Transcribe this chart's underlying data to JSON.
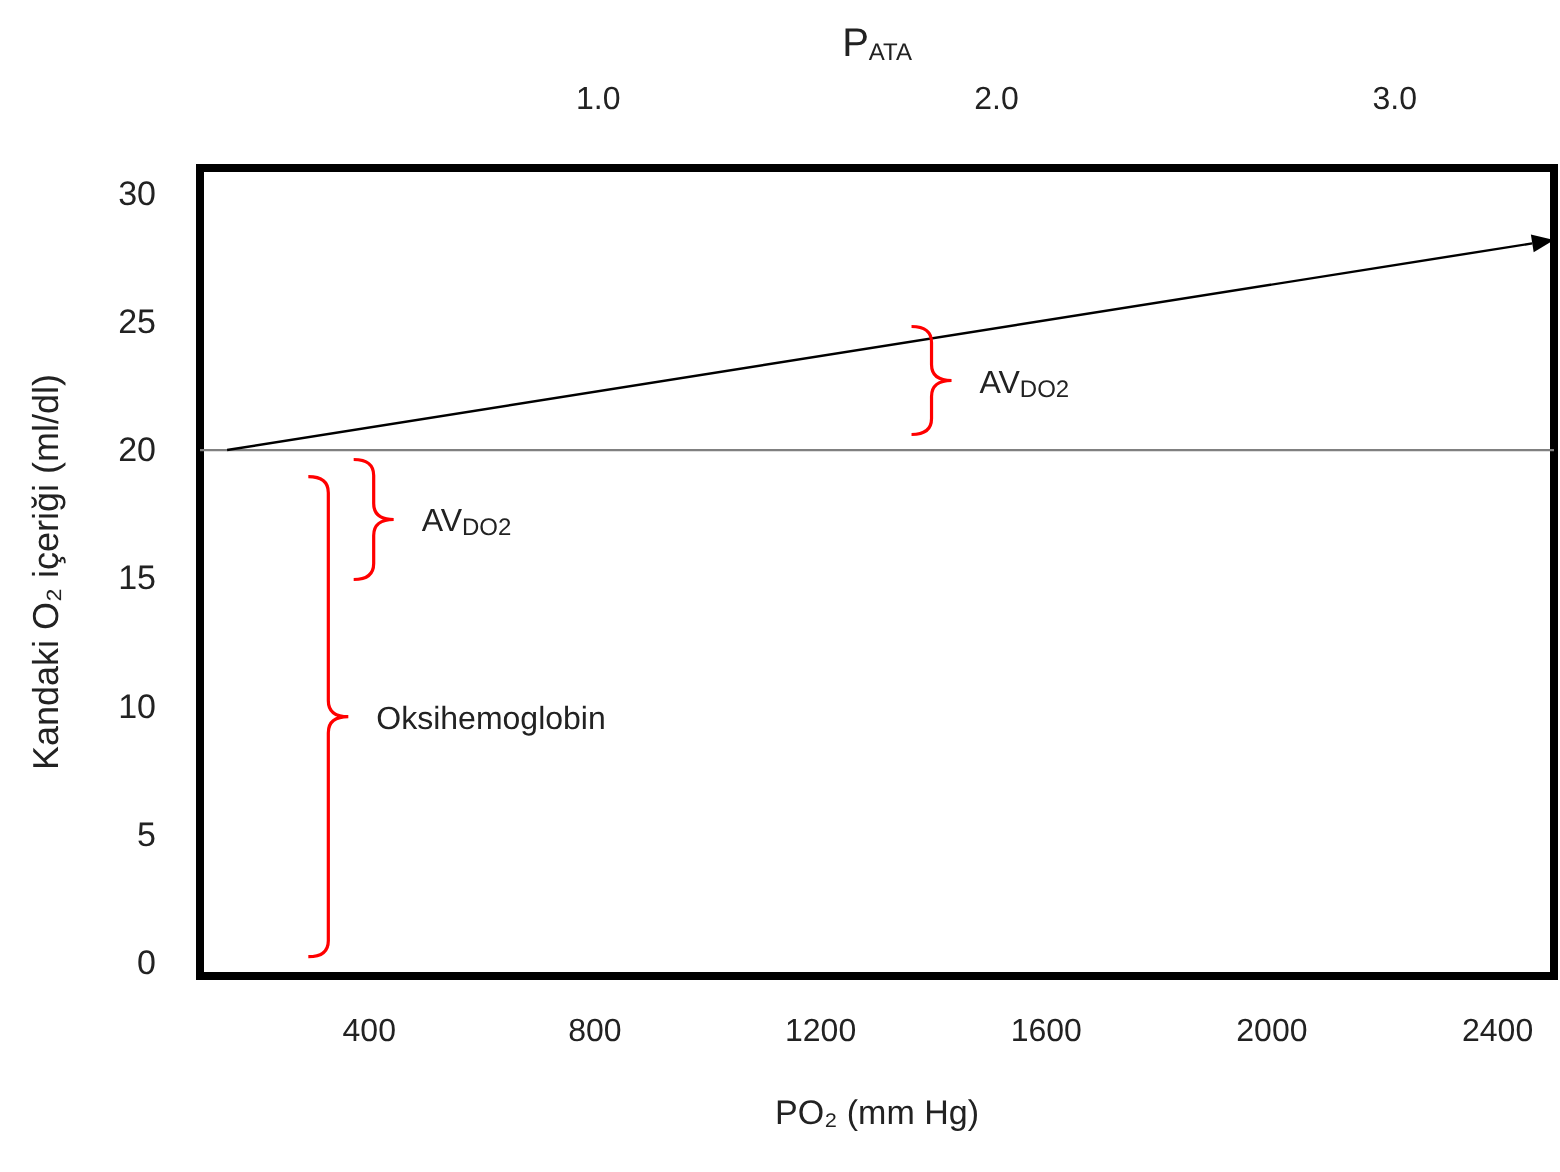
{
  "chart_data": {
    "type": "line",
    "xlabel": "PO₂ (mm Hg)",
    "ylabel": "Kandaki O₂ içeriği (ml/dl)",
    "x2label": "P$_{ATA}$",
    "xlim": [
      100,
      2500
    ],
    "xticks": [
      400,
      800,
      1200,
      1600,
      2000,
      2400
    ],
    "x2lim": [
      0,
      3.4
    ],
    "x2ticks": [
      {
        "value": 1,
        "label": "1.0"
      },
      {
        "value": 2,
        "label": "2.0"
      },
      {
        "value": 3,
        "label": "3.0"
      }
    ],
    "ylim": [
      -0.5,
      31
    ],
    "yticks": [
      0,
      5,
      10,
      15,
      20,
      25,
      30
    ],
    "series": [
      {
        "color": "#808080",
        "x": [
          100,
          2500
        ],
        "values": [
          20,
          20
        ]
      }
    ],
    "annotations": [
      "AV$_{DO2}$",
      "AV$_{DO2}$",
      "Oksihemoglobin"
    ],
    "grid": false
  }
}
